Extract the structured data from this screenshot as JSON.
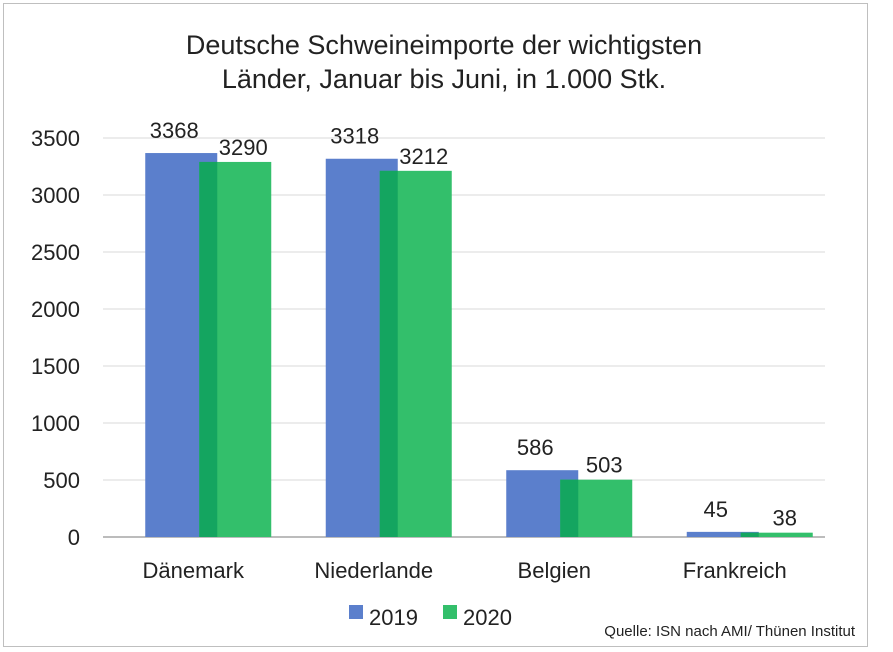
{
  "chart_data": {
    "type": "bar",
    "title_lines": [
      "Deutsche Schweineimporte der wichtigsten",
      "Länder, Januar bis Juni, in 1.000 Stk."
    ],
    "categories": [
      "Dänemark",
      "Niederlande",
      "Belgien",
      "Frankreich"
    ],
    "series": [
      {
        "name": "2019",
        "values": [
          3368,
          3318,
          586,
          45
        ],
        "color": "#5b7fcc"
      },
      {
        "name": "2020",
        "values": [
          3290,
          3212,
          503,
          38
        ],
        "color": "#33bf6b"
      }
    ],
    "overlap_color": "#14a560",
    "ylim": [
      0,
      3500
    ],
    "yticks": [
      0,
      500,
      1000,
      1500,
      2000,
      2500,
      3000,
      3500
    ],
    "grid": true,
    "legend_position": "bottom",
    "source": "Quelle: ISN nach AMI/ Thünen Institut"
  }
}
